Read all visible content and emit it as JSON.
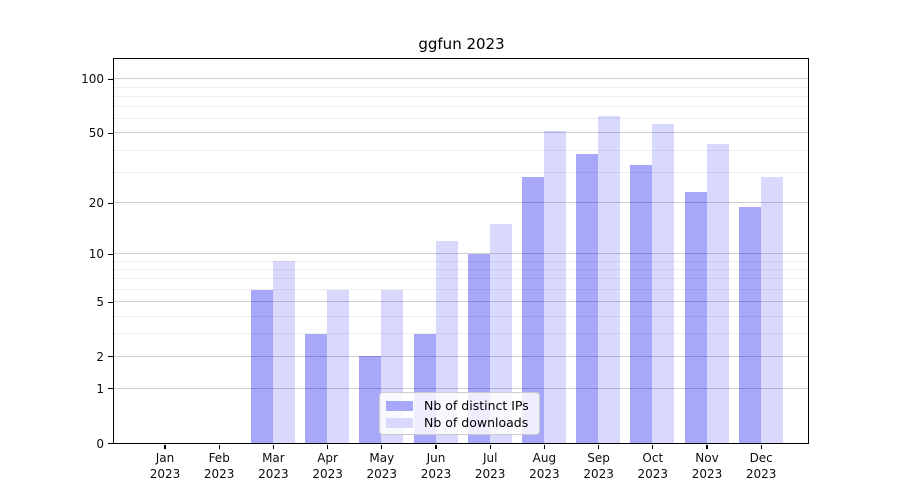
{
  "chart_data": {
    "type": "bar",
    "title": "ggfun 2023",
    "categories": [
      "Jan 2023",
      "Feb 2023",
      "Mar 2023",
      "Apr 2023",
      "May 2023",
      "Jun 2023",
      "Jul 2023",
      "Aug 2023",
      "Sep 2023",
      "Oct 2023",
      "Nov 2023",
      "Dec 2023"
    ],
    "x_tick_months": [
      "Jan",
      "Feb",
      "Mar",
      "Apr",
      "May",
      "Jun",
      "Jul",
      "Aug",
      "Sep",
      "Oct",
      "Nov",
      "Dec"
    ],
    "x_tick_year": "2023",
    "series": [
      {
        "name": "Nb of distinct IPs",
        "color": "#a8a8fa",
        "fill": "rgba(0,0,240,0.34)",
        "values": [
          0,
          0,
          6,
          3,
          2,
          3,
          10,
          28,
          38,
          33,
          23,
          19
        ]
      },
      {
        "name": "Nb of downloads",
        "color": "#d9d9fd",
        "fill": "rgba(0,0,240,0.15)",
        "values": [
          0,
          0,
          9,
          6,
          6,
          12,
          15,
          51,
          62,
          56,
          43,
          28
        ]
      }
    ],
    "yscale": "log1p",
    "ylim": [
      0,
      129
    ],
    "y_major_ticks": [
      0,
      1,
      2,
      5,
      10,
      20,
      50,
      100
    ],
    "y_minor_gridlines": [
      3,
      4,
      6,
      7,
      8,
      9,
      30,
      40,
      60,
      70,
      80,
      90
    ],
    "grid": true,
    "legend_position": "inside-bottom-center",
    "xlabel": "",
    "ylabel": ""
  },
  "colors": {
    "major_grid": "#cfcfcf",
    "minor_grid": "#eeeeee",
    "spine": "#000000",
    "tick_text": "#0d0d0d",
    "legend_border": "#cccccc",
    "legend_bg": "rgba(255,255,255,0.8)"
  }
}
